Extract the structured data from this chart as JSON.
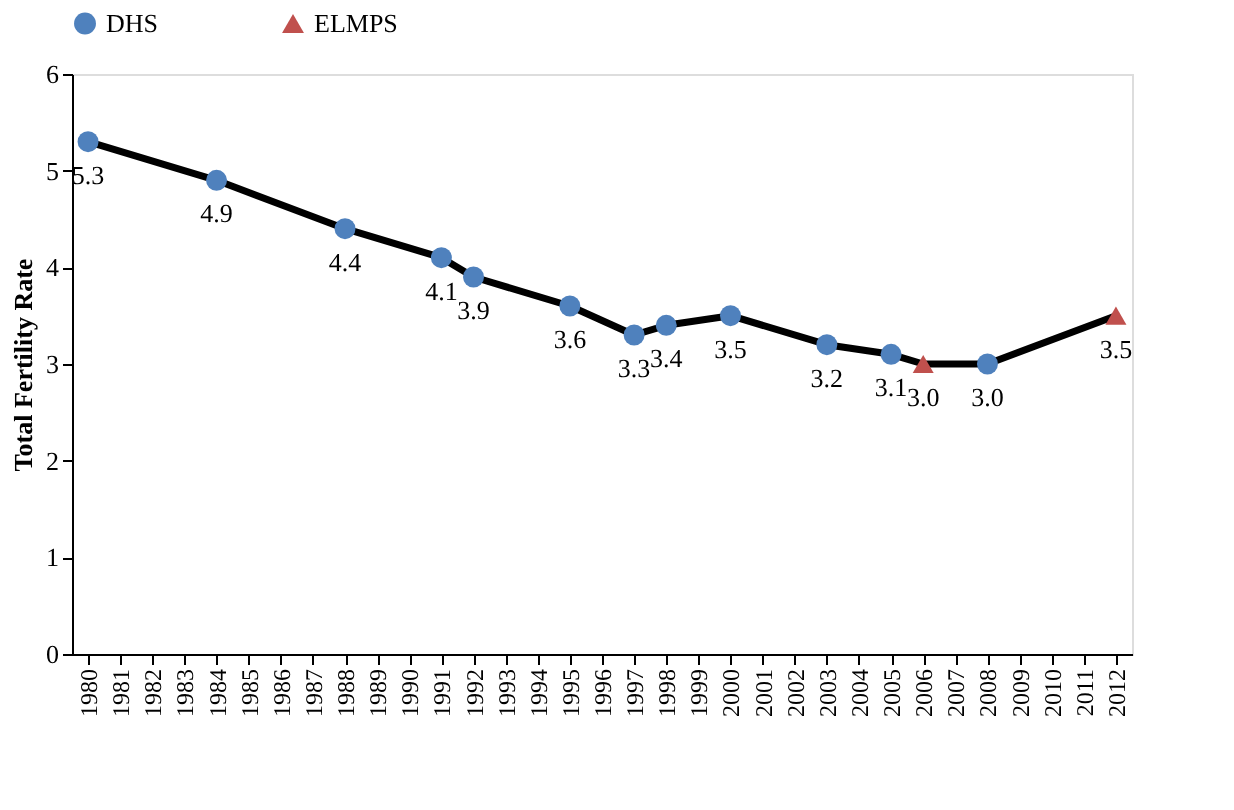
{
  "chart_data": {
    "type": "line",
    "ylabel": "Total Fertility Rate",
    "series": [
      {
        "color": "#000000",
        "marker": "none",
        "x": [
          1980,
          1984,
          1988,
          1991,
          1992,
          1995,
          1997,
          1998,
          2000,
          2003,
          2005,
          2006,
          2008,
          2012
        ],
        "values": [
          5.3,
          4.9,
          4.4,
          4.1,
          3.9,
          3.6,
          3.3,
          3.4,
          3.5,
          3.2,
          3.1,
          3.0,
          3.0,
          3.5
        ]
      },
      {
        "type": "scatter",
        "name": "DHS",
        "color": "#4f81bd",
        "marker": "circle",
        "x": [
          1980,
          1984,
          1988,
          1991,
          1992,
          1995,
          1997,
          1998,
          2000,
          2003,
          2005,
          2008
        ],
        "values": [
          5.3,
          4.9,
          4.4,
          4.1,
          3.9,
          3.6,
          3.3,
          3.4,
          3.5,
          3.2,
          3.1,
          3.0
        ],
        "value_labels": [
          "5.3",
          "4.9",
          "4.4",
          "4.1",
          "3.9",
          "3.6",
          "3.3",
          "3.4",
          "3.5",
          "3.2",
          "3.1",
          "3.0"
        ]
      },
      {
        "type": "scatter",
        "name": "ELMPS",
        "color": "#c0504d",
        "marker": "triangle",
        "x": [
          2006,
          2012
        ],
        "values": [
          3.0,
          3.5
        ],
        "value_labels": [
          "3.0",
          "3.5"
        ]
      }
    ],
    "xlim": [
      1979.5,
      2012.5
    ],
    "xticks": [
      1980,
      1981,
      1982,
      1983,
      1984,
      1985,
      1986,
      1987,
      1988,
      1989,
      1990,
      1991,
      1992,
      1993,
      1994,
      1995,
      1996,
      1997,
      1998,
      1999,
      2000,
      2001,
      2002,
      2003,
      2004,
      2005,
      2006,
      2007,
      2008,
      2009,
      2010,
      2011,
      2012
    ],
    "ylim": [
      0,
      6
    ],
    "yticks": [
      0,
      1,
      2,
      3,
      4,
      5,
      6
    ],
    "grid": false,
    "legend": "top"
  }
}
